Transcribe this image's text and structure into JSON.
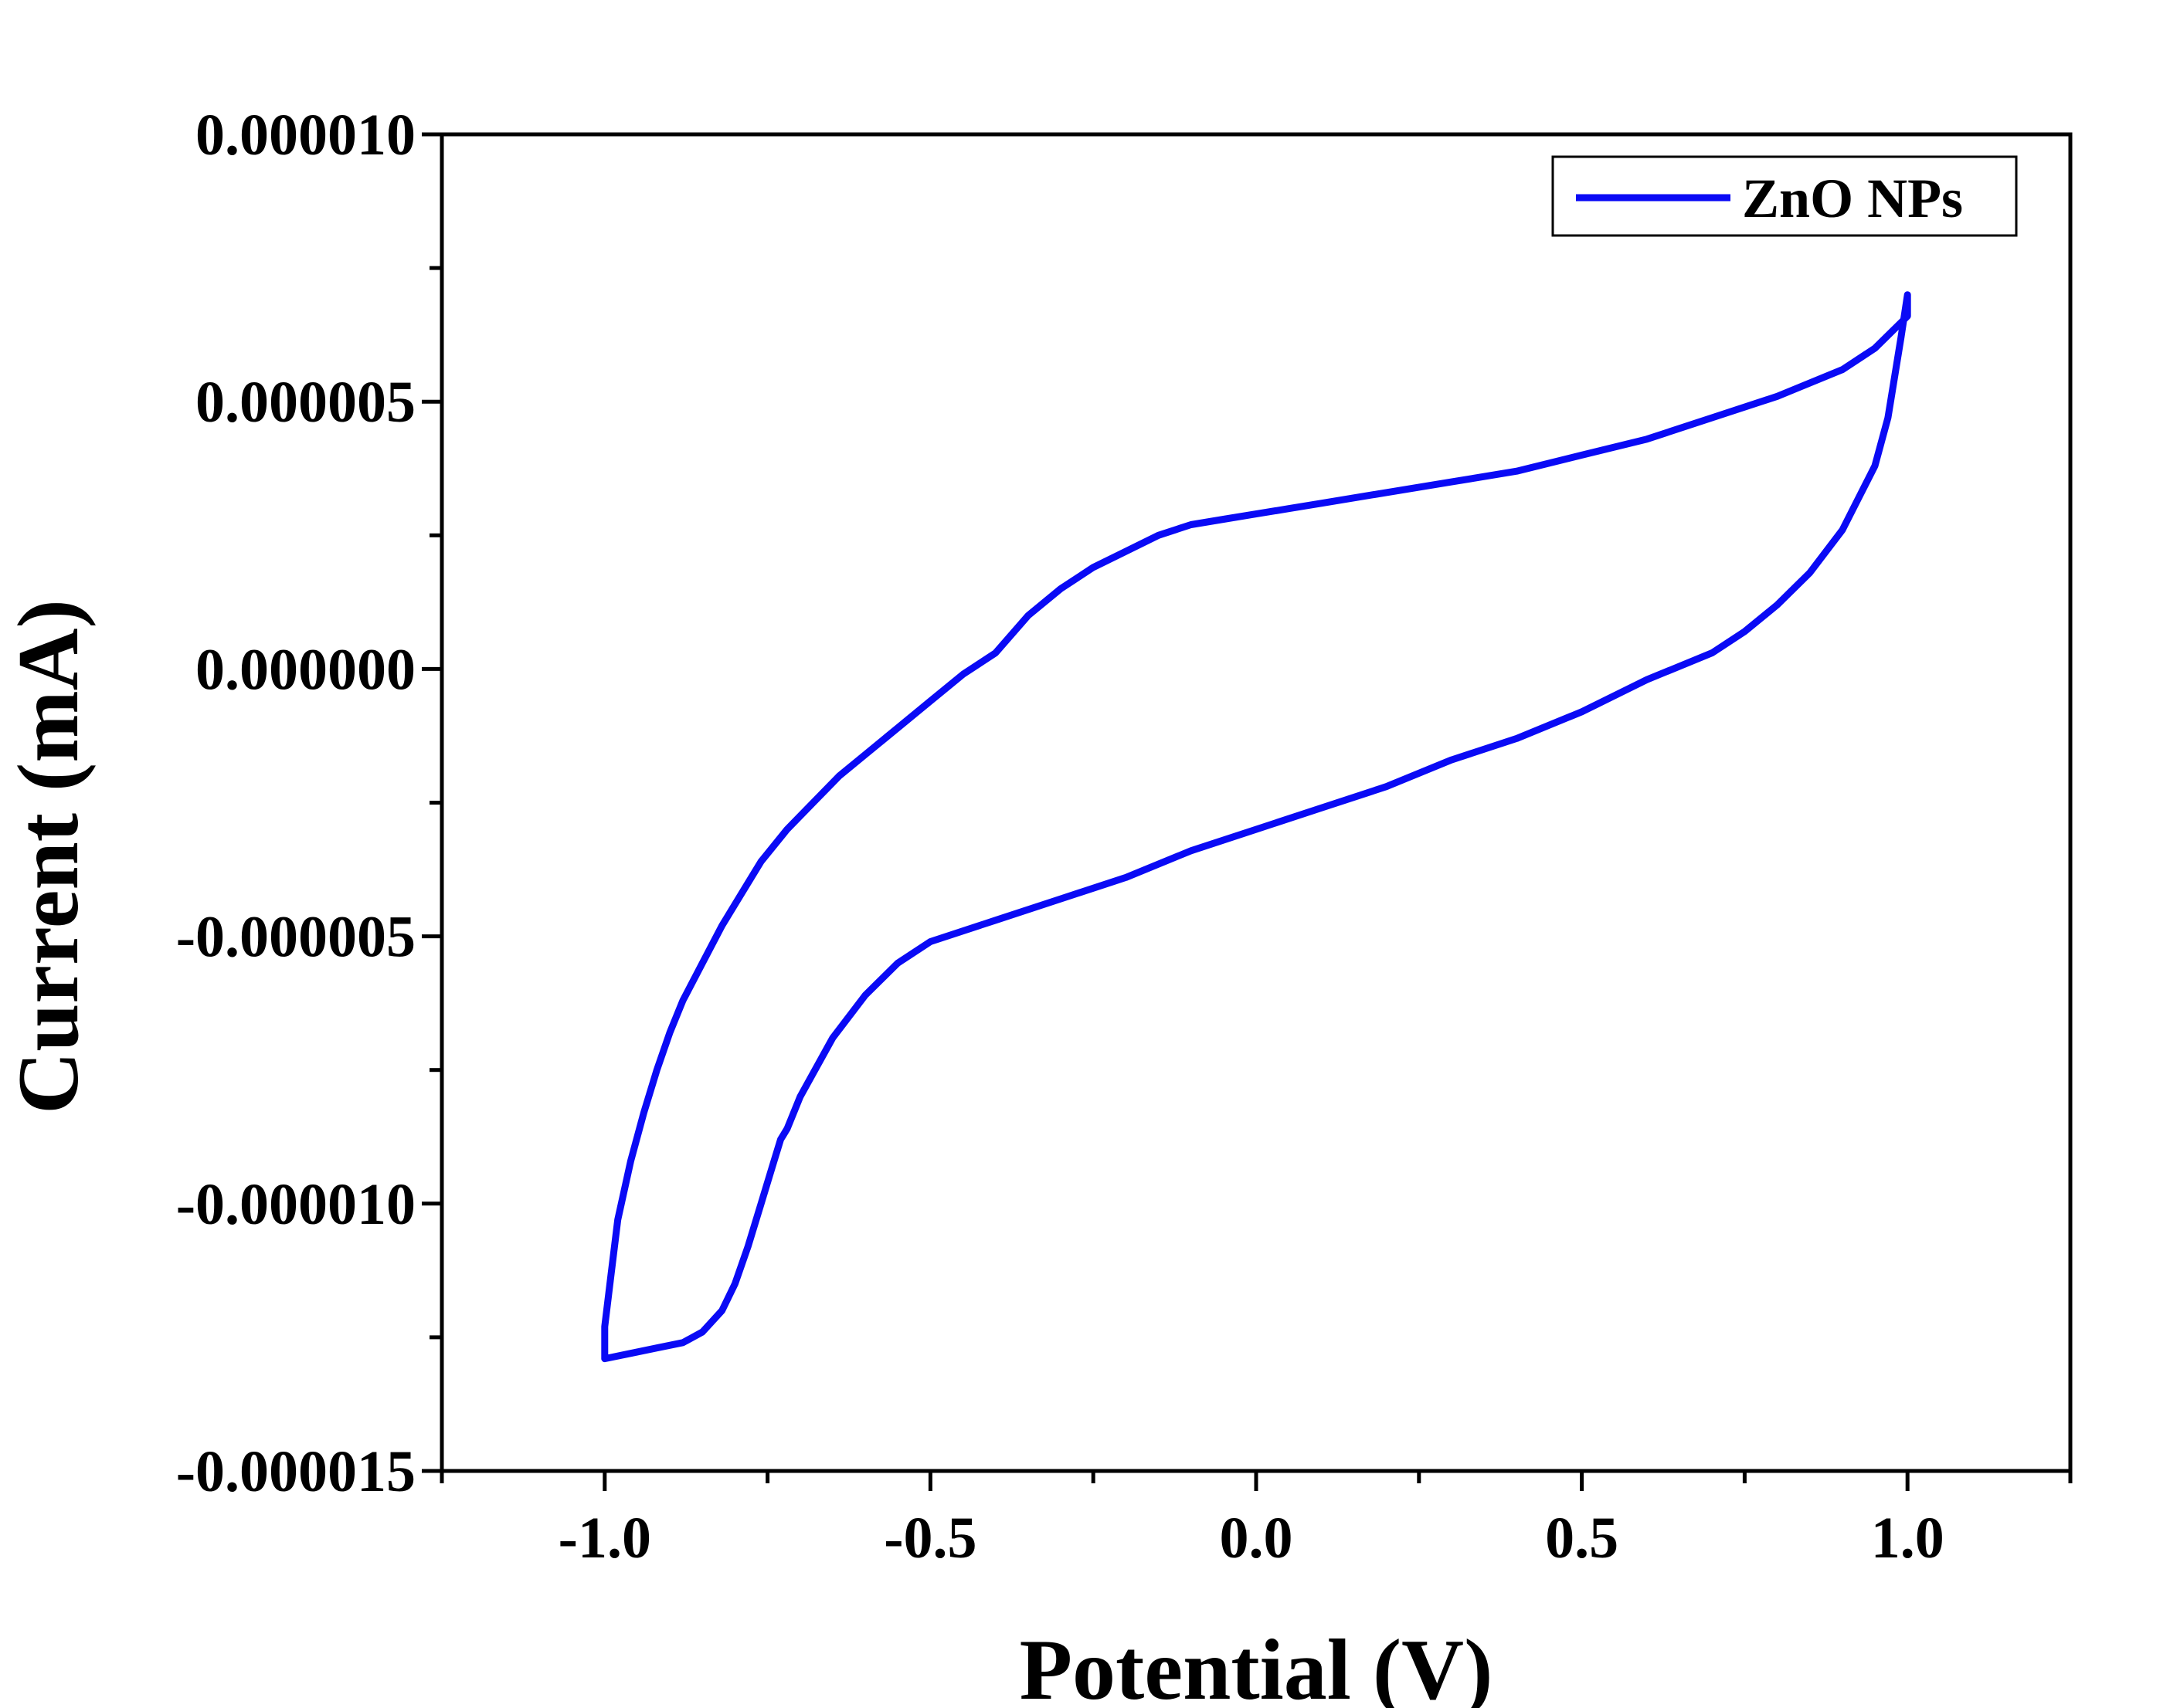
{
  "chart_data": {
    "type": "line",
    "xlabel": "Potential (V)",
    "ylabel": "Current (mA)",
    "xlim": [
      -1.25,
      1.25
    ],
    "ylim": [
      -1.5e-05,
      1e-05
    ],
    "x_ticks": [
      -1.0,
      -0.5,
      0.0,
      0.5,
      1.0
    ],
    "x_tick_labels": [
      "-1.0",
      "-0.5",
      "0.0",
      "0.5",
      "1.0"
    ],
    "y_ticks": [
      1e-05,
      5e-06,
      0.0,
      -5e-06,
      -1e-05,
      -1.5e-05
    ],
    "y_tick_labels": [
      "0.000010",
      "0.000005",
      "0.000000",
      "-0.000005",
      "-0.000010",
      "-0.000015"
    ],
    "grid": false,
    "legend_position": "top-right",
    "series": [
      {
        "name": "ZnO NPs",
        "color": "#0a0af5",
        "x": [
          -1.0,
          -0.99,
          -0.98,
          -0.96,
          -0.94,
          -0.92,
          -0.9,
          -0.88,
          -0.85,
          -0.82,
          -0.79,
          -0.76,
          -0.72,
          -0.68,
          -0.64,
          -0.6,
          -0.55,
          -0.5,
          -0.45,
          -0.4,
          -0.35,
          -0.3,
          -0.25,
          -0.2,
          -0.15,
          -0.1,
          -0.05,
          0.0,
          0.05,
          0.1,
          0.2,
          0.3,
          0.4,
          0.5,
          0.6,
          0.7,
          0.8,
          0.9,
          0.95,
          1.0,
          1.0,
          0.99,
          0.97,
          0.95,
          0.9,
          0.85,
          0.8,
          0.75,
          0.7,
          0.6,
          0.5,
          0.4,
          0.3,
          0.2,
          0.1,
          0.0,
          -0.1,
          -0.2,
          -0.3,
          -0.4,
          -0.5,
          -0.55,
          -0.6,
          -0.65,
          -0.7,
          -0.72,
          -0.73,
          -0.74,
          -0.76,
          -0.78,
          -0.8,
          -0.82,
          -0.85,
          -0.88,
          -0.92,
          -0.96,
          -1.0,
          -1.0
        ],
        "y": [
          -1.23e-05,
          -1.13e-05,
          -1.03e-05,
          -9.2e-06,
          -8.3e-06,
          -7.5e-06,
          -6.8e-06,
          -6.2e-06,
          -5.5e-06,
          -4.8e-06,
          -4.2e-06,
          -3.6e-06,
          -3e-06,
          -2.5e-06,
          -2e-06,
          -1.6e-06,
          -1.1e-06,
          -6e-07,
          -1e-07,
          3e-07,
          1e-06,
          1.5e-06,
          1.9e-06,
          2.2e-06,
          2.5e-06,
          2.7e-06,
          2.8e-06,
          2.9e-06,
          3e-06,
          3.1e-06,
          3.3e-06,
          3.5e-06,
          3.7e-06,
          4e-06,
          4.3e-06,
          4.7e-06,
          5.1e-06,
          5.6e-06,
          6e-06,
          6.6e-06,
          7e-06,
          6.2e-06,
          4.7e-06,
          3.8e-06,
          2.6e-06,
          1.8e-06,
          1.2e-06,
          7e-07,
          3e-07,
          -2e-07,
          -8e-07,
          -1.3e-06,
          -1.7e-06,
          -2.2e-06,
          -2.6e-06,
          -3e-06,
          -3.4e-06,
          -3.9e-06,
          -4.3e-06,
          -4.7e-06,
          -5.1e-06,
          -5.5e-06,
          -6.1e-06,
          -6.9e-06,
          -8e-06,
          -8.6e-06,
          -8.8e-06,
          -9.2e-06,
          -1e-05,
          -1.08e-05,
          -1.15e-05,
          -1.2e-05,
          -1.24e-05,
          -1.26e-05,
          -1.27e-05,
          -1.28e-05,
          -1.29e-05,
          -1.23e-05
        ]
      }
    ]
  }
}
